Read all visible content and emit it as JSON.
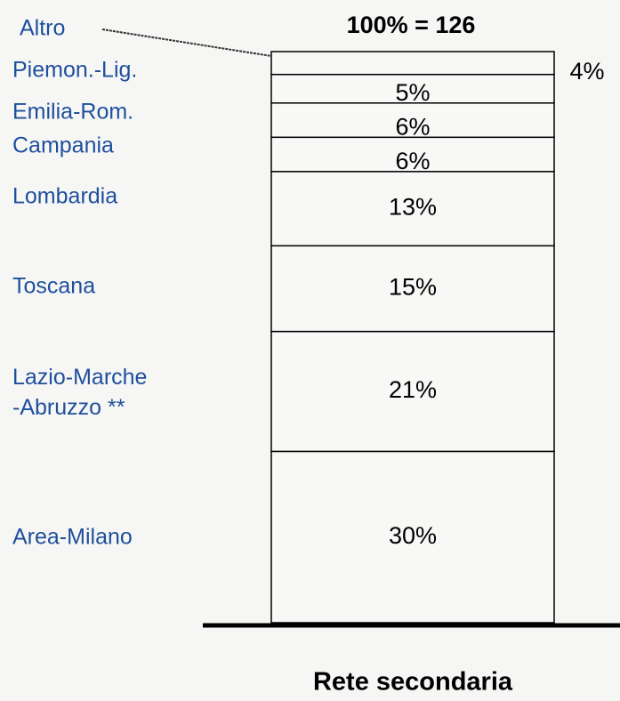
{
  "chart_data": {
    "type": "stacked_bar",
    "total_label": "100% = 126",
    "categories": [
      "Rete secondaria"
    ],
    "series": [
      {
        "name": "Area-Milano",
        "values": [
          30
        ],
        "value_labels": [
          "30%"
        ]
      },
      {
        "name": "Lazio-Marche\n-Abruzzo **",
        "values": [
          21
        ],
        "value_labels": [
          "21%"
        ]
      },
      {
        "name": "Toscana",
        "values": [
          15
        ],
        "value_labels": [
          "15%"
        ]
      },
      {
        "name": "Lombardia",
        "values": [
          13
        ],
        "value_labels": [
          "13%"
        ]
      },
      {
        "name": "Campania",
        "values": [
          6
        ],
        "value_labels": [
          "6%"
        ]
      },
      {
        "name": "Emilia-Rom.",
        "values": [
          6
        ],
        "value_labels": [
          "6%"
        ]
      },
      {
        "name": "Piemon.-Lig.",
        "values": [
          5
        ],
        "value_labels": [
          "5%"
        ]
      },
      {
        "name": "Altro",
        "values": [
          4
        ],
        "value_labels": [
          "4%"
        ]
      }
    ],
    "ylim": [
      0,
      100
    ]
  }
}
